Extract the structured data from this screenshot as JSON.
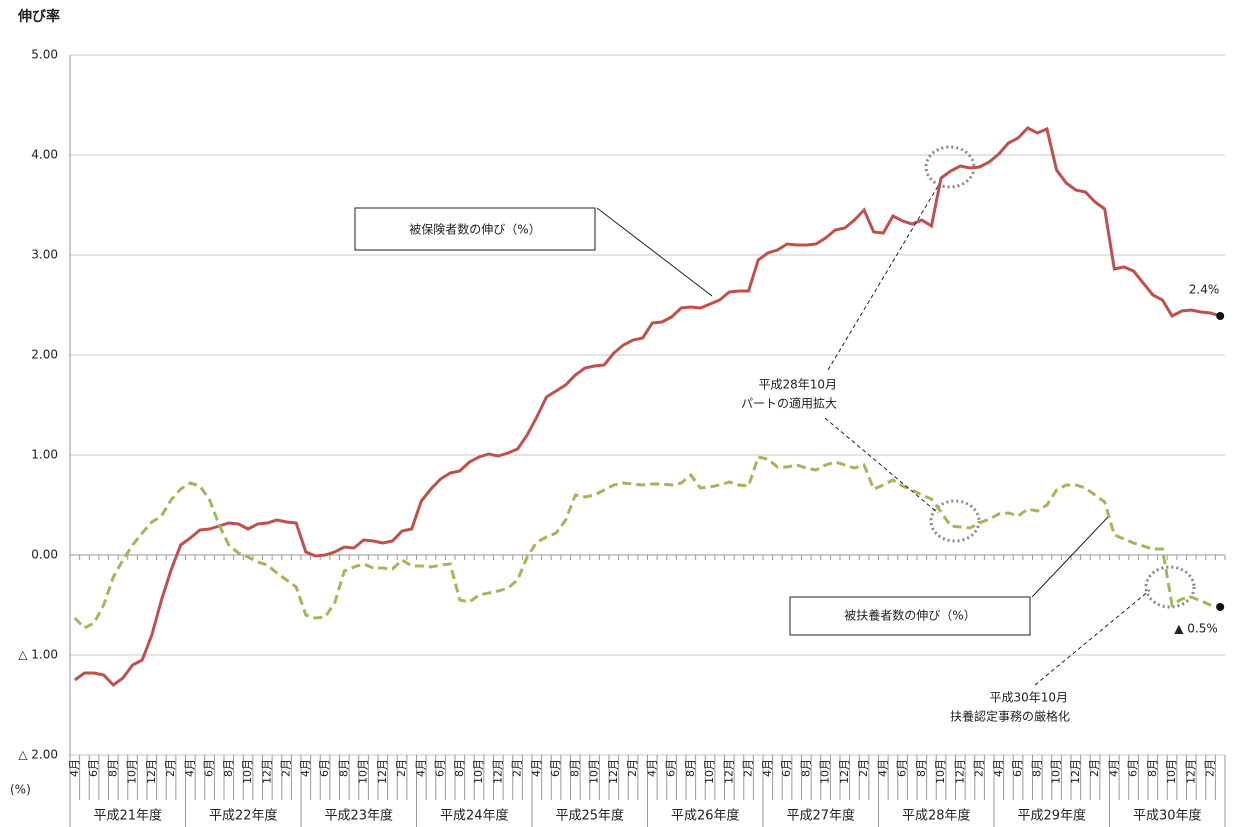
{
  "chart_data": {
    "type": "line",
    "y_axis_label": "伸び率",
    "unit_label": "(%)",
    "categories": [
      "4月",
      null,
      "6月",
      null,
      "8月",
      null,
      "10月",
      null,
      "12月",
      null,
      "2月",
      null,
      "4月",
      null,
      "6月",
      null,
      "8月",
      null,
      "10月",
      null,
      "12月",
      null,
      "2月",
      null,
      "4月",
      null,
      "6月",
      null,
      "8月",
      null,
      "10月",
      null,
      "12月",
      null,
      "2月",
      null,
      "4月",
      null,
      "6月",
      null,
      "8月",
      null,
      "10月",
      null,
      "12月",
      null,
      "2月",
      null,
      "4月",
      null,
      "6月",
      null,
      "8月",
      null,
      "10月",
      null,
      "12月",
      null,
      "2月",
      null,
      "4月",
      null,
      "6月",
      null,
      "8月",
      null,
      "10月",
      null,
      "12月",
      null,
      "2月",
      null,
      "4月",
      null,
      "6月",
      null,
      "8月",
      null,
      "10月",
      null,
      "12月",
      null,
      "2月",
      null,
      "4月",
      null,
      "6月",
      null,
      "8月",
      null,
      "10月",
      null,
      "12月",
      null,
      "2月",
      null,
      "4月",
      null,
      "6月",
      null,
      "8月",
      null,
      "10月",
      null,
      "12月",
      null,
      "2月",
      null,
      "4月",
      null,
      "6月",
      null,
      "8月",
      null,
      "10月",
      null,
      "12月",
      null,
      "2月",
      null
    ],
    "fiscal_years": [
      "平成21年度",
      "平成22年度",
      "平成23年度",
      "平成24年度",
      "平成25年度",
      "平成26年度",
      "平成27年度",
      "平成28年度",
      "平成29年度",
      "平成30年度"
    ],
    "series": [
      {
        "name": "被保険者数の伸び（%）",
        "color": "#c0504d",
        "dashed": false,
        "values": [
          -1.25,
          -1.18,
          -1.18,
          -1.2,
          -1.3,
          -1.23,
          -1.1,
          -1.05,
          -0.8,
          -0.45,
          -0.15,
          0.1,
          0.17,
          0.25,
          0.26,
          0.29,
          0.32,
          0.31,
          0.26,
          0.31,
          0.32,
          0.35,
          0.33,
          0.32,
          0.03,
          -0.01,
          0.0,
          0.03,
          0.08,
          0.07,
          0.15,
          0.14,
          0.12,
          0.14,
          0.24,
          0.26,
          0.54,
          0.66,
          0.76,
          0.82,
          0.84,
          0.93,
          0.98,
          1.01,
          0.99,
          1.02,
          1.06,
          1.2,
          1.38,
          1.58,
          1.64,
          1.7,
          1.8,
          1.87,
          1.89,
          1.9,
          2.02,
          2.1,
          2.15,
          2.17,
          2.32,
          2.33,
          2.38,
          2.47,
          2.48,
          2.47,
          2.51,
          2.55,
          2.63,
          2.64,
          2.64,
          2.95,
          3.02,
          3.05,
          3.11,
          3.1,
          3.1,
          3.11,
          3.17,
          3.25,
          3.27,
          3.35,
          3.45,
          3.23,
          3.22,
          3.39,
          3.34,
          3.31,
          3.35,
          3.29,
          3.77,
          3.84,
          3.89,
          3.87,
          3.88,
          3.93,
          4.01,
          4.12,
          4.17,
          4.27,
          4.22,
          4.26,
          3.85,
          3.72,
          3.65,
          3.63,
          3.53,
          3.46,
          2.86,
          2.88,
          2.84,
          2.72,
          2.6,
          2.55,
          2.39,
          2.44,
          2.45,
          2.43,
          2.42,
          2.39
        ]
      },
      {
        "name": "被扶養者数の伸び（%）",
        "color": "#9bbb59",
        "dashed": true,
        "values": [
          -0.63,
          -0.73,
          -0.68,
          -0.5,
          -0.22,
          -0.05,
          0.1,
          0.22,
          0.33,
          0.39,
          0.55,
          0.66,
          0.72,
          0.69,
          0.55,
          0.3,
          0.1,
          0.02,
          -0.02,
          -0.07,
          -0.1,
          -0.18,
          -0.25,
          -0.32,
          -0.6,
          -0.63,
          -0.62,
          -0.48,
          -0.16,
          -0.12,
          -0.09,
          -0.13,
          -0.13,
          -0.14,
          -0.05,
          -0.11,
          -0.11,
          -0.12,
          -0.1,
          -0.09,
          -0.45,
          -0.47,
          -0.4,
          -0.38,
          -0.36,
          -0.33,
          -0.25,
          -0.02,
          0.13,
          0.18,
          0.22,
          0.35,
          0.6,
          0.58,
          0.6,
          0.65,
          0.7,
          0.72,
          0.71,
          0.7,
          0.71,
          0.71,
          0.7,
          0.72,
          0.8,
          0.67,
          0.68,
          0.7,
          0.73,
          0.7,
          0.69,
          0.98,
          0.96,
          0.88,
          0.88,
          0.9,
          0.87,
          0.85,
          0.9,
          0.93,
          0.9,
          0.87,
          0.9,
          0.66,
          0.7,
          0.75,
          0.69,
          0.65,
          0.6,
          0.56,
          0.43,
          0.29,
          0.28,
          0.27,
          0.32,
          0.36,
          0.41,
          0.42,
          0.39,
          0.46,
          0.44,
          0.5,
          0.65,
          0.7,
          0.7,
          0.67,
          0.6,
          0.53,
          0.2,
          0.16,
          0.12,
          0.09,
          0.06,
          0.06,
          -0.5,
          -0.44,
          -0.42,
          -0.46,
          -0.5,
          -0.52
        ]
      }
    ],
    "ylim": [
      -2,
      5
    ],
    "yticks": [
      {
        "value": 5,
        "label": "5.00"
      },
      {
        "value": 4,
        "label": "4.00"
      },
      {
        "value": 3,
        "label": "3.00"
      },
      {
        "value": 2,
        "label": "2.00"
      },
      {
        "value": 1,
        "label": "1.00"
      },
      {
        "value": 0,
        "label": "0.00"
      },
      {
        "value": -1,
        "label": "△ 1.00"
      },
      {
        "value": -2,
        "label": "△ 2.00"
      }
    ],
    "grid": true,
    "annotations": [
      "平成28年10月",
      "パートの適用拡大",
      "平成30年10月",
      "扶養認定事務の厳格化",
      "2.4%",
      "▲ 0.5%"
    ]
  }
}
